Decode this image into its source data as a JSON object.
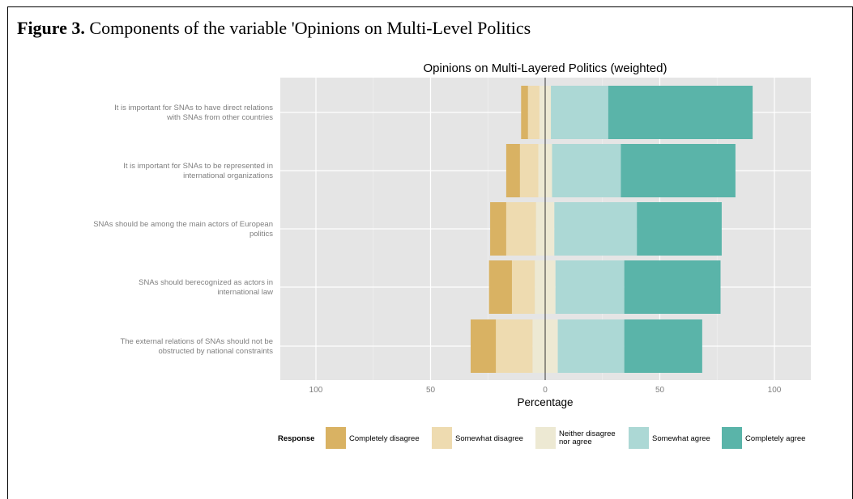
{
  "figure": {
    "label": "Figure 3.",
    "caption": "Components of the variable 'Opinions on Multi-Level Politics"
  },
  "chart_data": {
    "type": "bar",
    "orientation": "horizontal",
    "stacking": "diverging",
    "title": "Opinions on Multi-Layered Politics (weighted)",
    "xlabel": "Percentage",
    "ylabel": "",
    "xlim": [
      -100,
      100
    ],
    "xticks": [
      -100,
      -50,
      0,
      50,
      100
    ],
    "xtick_labels": [
      "100",
      "50",
      "0",
      "50",
      "100"
    ],
    "grid": true,
    "legend": {
      "title": "Response",
      "position": "bottom"
    },
    "categories": [
      "It is important for SNAs to have direct relations with SNAs from other countries",
      "It is important for SNAs to be represented in international organizations",
      "SNAs should be among the main actors of European politics",
      "SNAs should berecognized as actors in international law",
      "The external relations of SNAs should not be obstructed by national constraints"
    ],
    "category_lines": [
      [
        "It is important for SNAs to have direct relations",
        "with SNAs from other countries"
      ],
      [
        "It is important for SNAs to be represented in",
        "international organizations"
      ],
      [
        "SNAs should be among the main actors of European",
        "politics"
      ],
      [
        "SNAs should berecognized as actors in",
        "international law"
      ],
      [
        "The external relations of SNAs should not be",
        "obstructed by national constraints"
      ]
    ],
    "series": [
      {
        "name": "Completely disagree",
        "legend_lines": [
          "Completely disagree"
        ],
        "color": "#d9b263",
        "values": [
          3,
          6,
          7,
          10,
          11
        ]
      },
      {
        "name": "Somewhat disagree",
        "legend_lines": [
          "Somewhat disagree"
        ],
        "color": "#eedbb0",
        "values": [
          5,
          8,
          13,
          10,
          16
        ]
      },
      {
        "name": "Neither disagree nor agree",
        "legend_lines": [
          "Neither disagree",
          "nor agree"
        ],
        "color": "#ede9d3",
        "values": [
          5,
          6,
          8,
          9,
          11
        ]
      },
      {
        "name": "Somewhat agree",
        "legend_lines": [
          "Somewhat agree"
        ],
        "color": "#acd8d5",
        "values": [
          25,
          30,
          36,
          30,
          29
        ]
      },
      {
        "name": "Completely agree",
        "legend_lines": [
          "Completely agree"
        ],
        "color": "#5ab4a9",
        "values": [
          63,
          50,
          37,
          42,
          34
        ]
      }
    ]
  }
}
